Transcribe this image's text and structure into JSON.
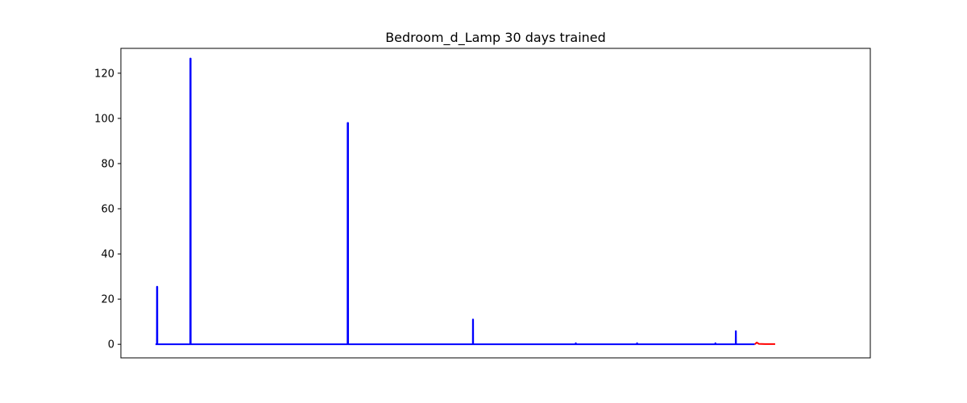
{
  "chart_data": {
    "type": "line",
    "title": "Bedroom_d_Lamp 30 days trained",
    "xlabel": "",
    "ylabel": "",
    "x_ticks_shown": false,
    "xlim": [
      0,
      1000
    ],
    "ylim": [
      -6,
      131
    ],
    "y_ticks": [
      0,
      20,
      40,
      60,
      80,
      100,
      120
    ],
    "grid": false,
    "legend": "none",
    "series": [
      {
        "color": "#0000ff",
        "points": [
          [
            0,
            0
          ],
          [
            2,
            0
          ],
          [
            2.1,
            25.5
          ],
          [
            2.6,
            25.5
          ],
          [
            2.7,
            0
          ],
          [
            51,
            0
          ],
          [
            51.1,
            126.5
          ],
          [
            51.6,
            126.5
          ],
          [
            51.7,
            0
          ],
          [
            282,
            0
          ],
          [
            282.1,
            98
          ],
          [
            282.8,
            98
          ],
          [
            282.9,
            0
          ],
          [
            466,
            0
          ],
          [
            466.1,
            11
          ],
          [
            466.4,
            11
          ],
          [
            466.5,
            0
          ],
          [
            617,
            0
          ],
          [
            617.1,
            0.5
          ],
          [
            617.3,
            0.5
          ],
          [
            617.4,
            0
          ],
          [
            707,
            0
          ],
          [
            707.1,
            0.5
          ],
          [
            707.3,
            0.5
          ],
          [
            707.4,
            0
          ],
          [
            822,
            0
          ],
          [
            822.1,
            0.5
          ],
          [
            822.3,
            0.5
          ],
          [
            822.4,
            0
          ],
          [
            852,
            0
          ],
          [
            852.1,
            5.8
          ],
          [
            852.4,
            5.8
          ],
          [
            852.5,
            0
          ],
          [
            880,
            0
          ]
        ]
      },
      {
        "color": "#ff0000",
        "points": [
          [
            880,
            0
          ],
          [
            883,
            0.8
          ],
          [
            886,
            0.2
          ],
          [
            895,
            0.1
          ],
          [
            910,
            0.1
          ]
        ]
      }
    ]
  }
}
